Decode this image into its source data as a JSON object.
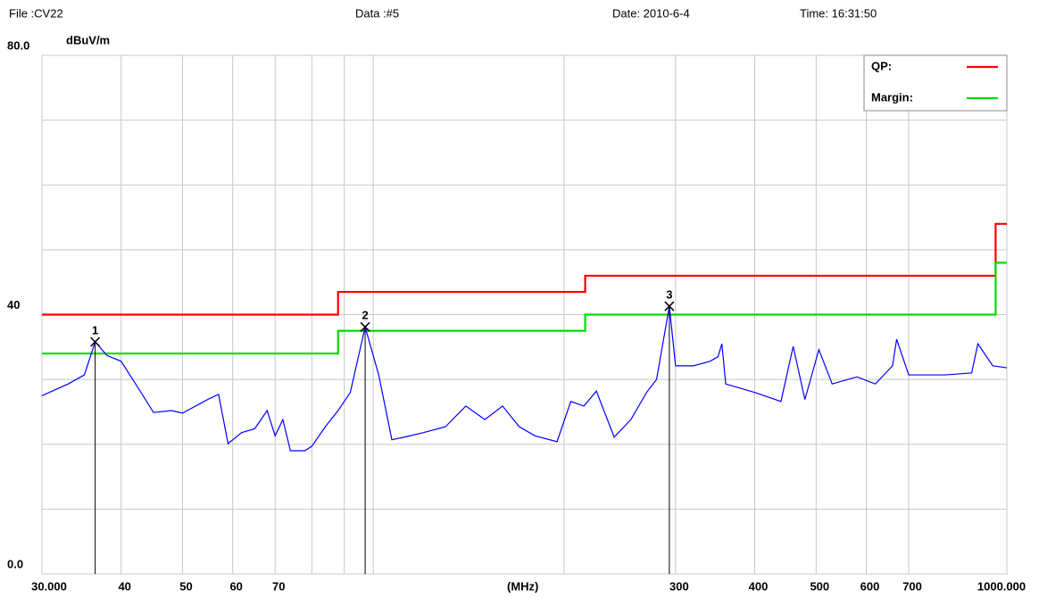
{
  "chart_data": {
    "type": "line",
    "info": [
      "File :CV22",
      "Data :#5",
      "Date: 2010-6-4",
      "Time: 16:31:50"
    ],
    "y_label": "dBuV/m",
    "x_label": "(MHz)",
    "log_x": true,
    "xlim": [
      30,
      1000
    ],
    "ylim": [
      0,
      80
    ],
    "xticks": [
      {
        "value": 30,
        "label": "30.000"
      },
      40,
      50,
      60,
      70,
      300,
      400,
      500,
      600,
      700,
      {
        "value": 1000,
        "label": "1000.000"
      }
    ],
    "xgrid": [
      80,
      90,
      100,
      200
    ],
    "yticks": [
      {
        "value": 0,
        "label": "0.0"
      },
      40,
      {
        "value": 80,
        "label": "80.0"
      }
    ],
    "ygrid": [
      10,
      20,
      30,
      50,
      60,
      70
    ],
    "grid": true,
    "legend": "top-right",
    "series": [
      {
        "name": "QP:",
        "color": "#ff0000",
        "x": [
          30,
          88,
          88,
          216,
          216,
          960,
          960,
          1000
        ],
        "values": [
          40,
          40,
          43.5,
          43.5,
          46,
          46,
          54,
          54
        ]
      },
      {
        "name": "Margin:",
        "color": "#00dd00",
        "x": [
          30,
          88,
          88,
          216,
          216,
          960,
          960,
          1000
        ],
        "values": [
          34,
          34,
          37.5,
          37.5,
          40,
          40,
          48,
          48
        ]
      },
      {
        "color": "#0000ff",
        "x": [
          30,
          33,
          35,
          36.4,
          38,
          40,
          43,
          45,
          48,
          50,
          55,
          57,
          59,
          62,
          65,
          68,
          70,
          72,
          74,
          78,
          80,
          84,
          88,
          92,
          97.1,
          102,
          107,
          112,
          120,
          130,
          140,
          150,
          160,
          170,
          180,
          195,
          205,
          215,
          225,
          240,
          255,
          270,
          280,
          293.3,
          300,
          320,
          340,
          350,
          355,
          360,
          400,
          440,
          460,
          480,
          505,
          530,
          580,
          620,
          660,
          670,
          700,
          800,
          880,
          900,
          950,
          1000
        ],
        "values": [
          27.5,
          29.3,
          30.7,
          35.8,
          33.7,
          32.8,
          28.0,
          24.9,
          25.2,
          24.8,
          27.0,
          27.7,
          20.1,
          21.8,
          22.4,
          25.2,
          21.3,
          23.8,
          19.0,
          19.0,
          19.7,
          22.7,
          25.2,
          28.0,
          38.1,
          30.7,
          20.7,
          21.1,
          21.8,
          22.7,
          25.9,
          23.8,
          25.9,
          22.7,
          21.3,
          20.4,
          26.6,
          25.9,
          28.2,
          21.1,
          23.8,
          28.0,
          30.0,
          41.3,
          32.1,
          32.1,
          32.8,
          33.5,
          35.5,
          29.3,
          28.0,
          26.6,
          35.1,
          26.9,
          34.6,
          29.3,
          30.4,
          29.3,
          32.1,
          36.2,
          30.7,
          30.7,
          31.0,
          35.5,
          32.1,
          31.8
        ]
      }
    ],
    "markers": [
      {
        "label": "1",
        "x": 36.4,
        "y": 35.8
      },
      {
        "label": "2",
        "x": 97.1,
        "y": 38.1
      },
      {
        "label": "3",
        "x": 293.3,
        "y": 41.3
      }
    ]
  }
}
